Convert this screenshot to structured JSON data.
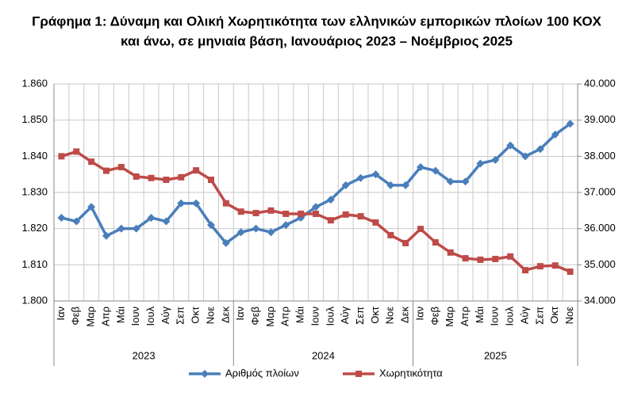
{
  "chart_data": {
    "type": "line",
    "title": "Γράφημα 1: Δύναμη και Ολική Χωρητικότητα των ελληνικών εμπορικών πλοίων 100 ΚΟΧ",
    "subtitle": "και άνω, σε μηνιαία βάση, Ιανουάριος 2023 – Νοέμβριος 2025",
    "categories": [
      "Ιαν",
      "Φεβ",
      "Μαρ",
      "Απρ",
      "Μάι",
      "Ιουν",
      "Ιουλ",
      "Αύγ",
      "Σεπ",
      "Οκτ",
      "Νοε",
      "Δεκ",
      "Ιαν",
      "Φεβ",
      "Μαρ",
      "Απρ",
      "Μάι",
      "Ιουν",
      "Ιουλ",
      "Αύγ",
      "Σεπ",
      "Οκτ",
      "Νοε",
      "Δεκ",
      "Ιαν",
      "Φεβ",
      "Μαρ",
      "Απρ",
      "Μάι",
      "Ιουν",
      "Ιουλ",
      "Αύγ",
      "Σεπ",
      "Οκτ",
      "Νοε"
    ],
    "year_labels": [
      "2023",
      "2024",
      "2025"
    ],
    "series": [
      {
        "name": "Αριθμός πλοίων",
        "color": "#4a7ebb",
        "marker": "diamond",
        "values": [
          1823,
          1822,
          1826,
          1818,
          1820,
          1820,
          1823,
          1822,
          1827,
          1827,
          1821,
          1816,
          1819,
          1820,
          1819,
          1821,
          1823,
          1826,
          1828,
          1832,
          1834,
          1835,
          1832,
          1832,
          1837,
          1836,
          1833,
          1833,
          1838,
          1839,
          1843,
          1840,
          1842,
          1846,
          1849
        ]
      },
      {
        "name": "Χωρητικότητα",
        "color": "#be4b48",
        "marker": "square",
        "axis": "y2",
        "values": [
          38000,
          38130,
          37850,
          37600,
          37700,
          37440,
          37400,
          37350,
          37420,
          37610,
          37350,
          36700,
          36470,
          36430,
          36500,
          36410,
          36410,
          36410,
          36230,
          36390,
          36340,
          36170,
          35820,
          35600,
          35990,
          35620,
          35340,
          35180,
          35140,
          35160,
          35230,
          34850,
          34960,
          34980,
          34810
        ]
      }
    ],
    "ylim": [
      1800,
      1860
    ],
    "yticks": [
      {
        "value": 1800,
        "label": "1.800"
      },
      {
        "value": 1810,
        "label": "1.810"
      },
      {
        "value": 1820,
        "label": "1.820"
      },
      {
        "value": 1830,
        "label": "1.830"
      },
      {
        "value": 1840,
        "label": "1.840"
      },
      {
        "value": 1850,
        "label": "1.850"
      },
      {
        "value": 1860,
        "label": "1.860"
      }
    ],
    "y2lim": [
      34000,
      40000
    ],
    "y2ticks": [
      {
        "value": 34000,
        "label": "34.000"
      },
      {
        "value": 35000,
        "label": "35.000"
      },
      {
        "value": 36000,
        "label": "36.000"
      },
      {
        "value": 37000,
        "label": "37.000"
      },
      {
        "value": 38000,
        "label": "38.000"
      },
      {
        "value": 39000,
        "label": "39.000"
      },
      {
        "value": 40000,
        "label": "40.000"
      }
    ],
    "grid": true,
    "legend": "bottom"
  }
}
